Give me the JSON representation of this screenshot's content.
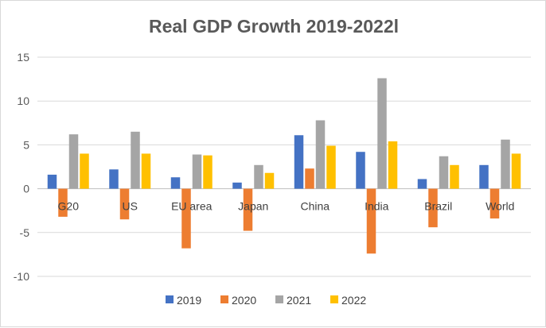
{
  "chart_data": {
    "type": "bar",
    "title": "Real GDP Growth 2019-2022l",
    "xlabel": "",
    "ylabel": "",
    "ylim": [
      -10,
      15
    ],
    "yticks": [
      15,
      10,
      5,
      0,
      -5,
      -10
    ],
    "grid": true,
    "legend_position": "bottom",
    "categories": [
      "G20",
      "US",
      "EU area",
      "Japan",
      "China",
      "India",
      "Brazil",
      "World"
    ],
    "series": [
      {
        "name": "2019",
        "color": "#4472C4",
        "values": [
          1.6,
          2.2,
          1.3,
          0.7,
          6.1,
          4.2,
          1.1,
          2.7
        ]
      },
      {
        "name": "2020",
        "color": "#ED7D31",
        "values": [
          -3.2,
          -3.5,
          -6.8,
          -4.8,
          2.3,
          -7.4,
          -4.4,
          -3.4
        ]
      },
      {
        "name": "2021",
        "color": "#A5A5A5",
        "values": [
          6.2,
          6.5,
          3.9,
          2.7,
          7.8,
          12.6,
          3.7,
          5.6
        ]
      },
      {
        "name": "2022",
        "color": "#FFC000",
        "values": [
          4.0,
          4.0,
          3.8,
          1.8,
          4.9,
          5.4,
          2.7,
          4.0
        ]
      }
    ]
  }
}
